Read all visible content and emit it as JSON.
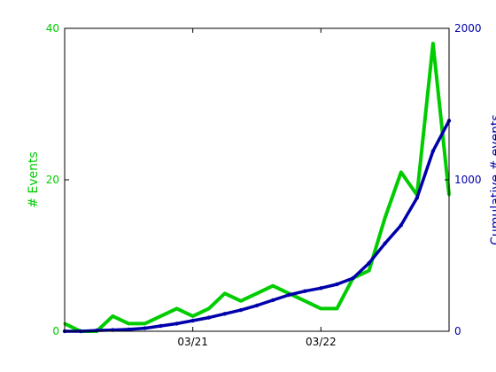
{
  "chart_data": {
    "type": "line",
    "title": "",
    "xlabel": "",
    "ylabel": "# Events",
    "ylabel_right": "Cumulative # events",
    "ylim": [
      0,
      40
    ],
    "ylim_right": [
      0,
      2000
    ],
    "yticks": [
      0,
      20,
      40
    ],
    "yticks_right": [
      0,
      1000,
      2000
    ],
    "xlim": [
      "03/20",
      "03/23"
    ],
    "xticks": [
      "03/21",
      "03/22"
    ],
    "grid": false,
    "colors": {
      "events": "#00cc00",
      "cumulative": "#0000aa",
      "axes": "#000000"
    },
    "series": [
      {
        "axis": "left",
        "x": [
          "03/20 00:00",
          "03/20 03:00",
          "03/20 06:00",
          "03/20 09:00",
          "03/20 12:00",
          "03/20 15:00",
          "03/20 18:00",
          "03/20 21:00",
          "03/21 00:00",
          "03/21 03:00",
          "03/21 06:00",
          "03/21 09:00",
          "03/21 12:00",
          "03/21 15:00",
          "03/21 18:00",
          "03/21 21:00",
          "03/22 00:00",
          "03/22 03:00",
          "03/22 06:00",
          "03/22 09:00",
          "03/22 12:00",
          "03/22 15:00",
          "03/22 18:00",
          "03/22 21:00",
          "03/23 00:00"
        ],
        "values": [
          1,
          0,
          0,
          2,
          1,
          1,
          2,
          3,
          2,
          3,
          5,
          4,
          5,
          6,
          5,
          4,
          3,
          3,
          7,
          8,
          15,
          21,
          18,
          38,
          18
        ]
      },
      {
        "axis": "right",
        "x": [
          "03/20 00:00",
          "03/20 03:00",
          "03/20 06:00",
          "03/20 09:00",
          "03/20 12:00",
          "03/20 15:00",
          "03/20 18:00",
          "03/20 21:00",
          "03/21 00:00",
          "03/21 03:00",
          "03/21 06:00",
          "03/21 09:00",
          "03/21 12:00",
          "03/21 15:00",
          "03/21 18:00",
          "03/21 21:00",
          "03/22 00:00",
          "03/22 03:00",
          "03/22 06:00",
          "03/22 09:00",
          "03/22 12:00",
          "03/22 15:00",
          "03/22 18:00",
          "03/22 21:00",
          "03/23 00:00"
        ],
        "values": [
          0,
          0,
          5,
          8,
          12,
          20,
          35,
          50,
          70,
          90,
          115,
          140,
          170,
          205,
          240,
          265,
          285,
          310,
          350,
          450,
          580,
          700,
          880,
          1190,
          1390
        ]
      }
    ]
  }
}
